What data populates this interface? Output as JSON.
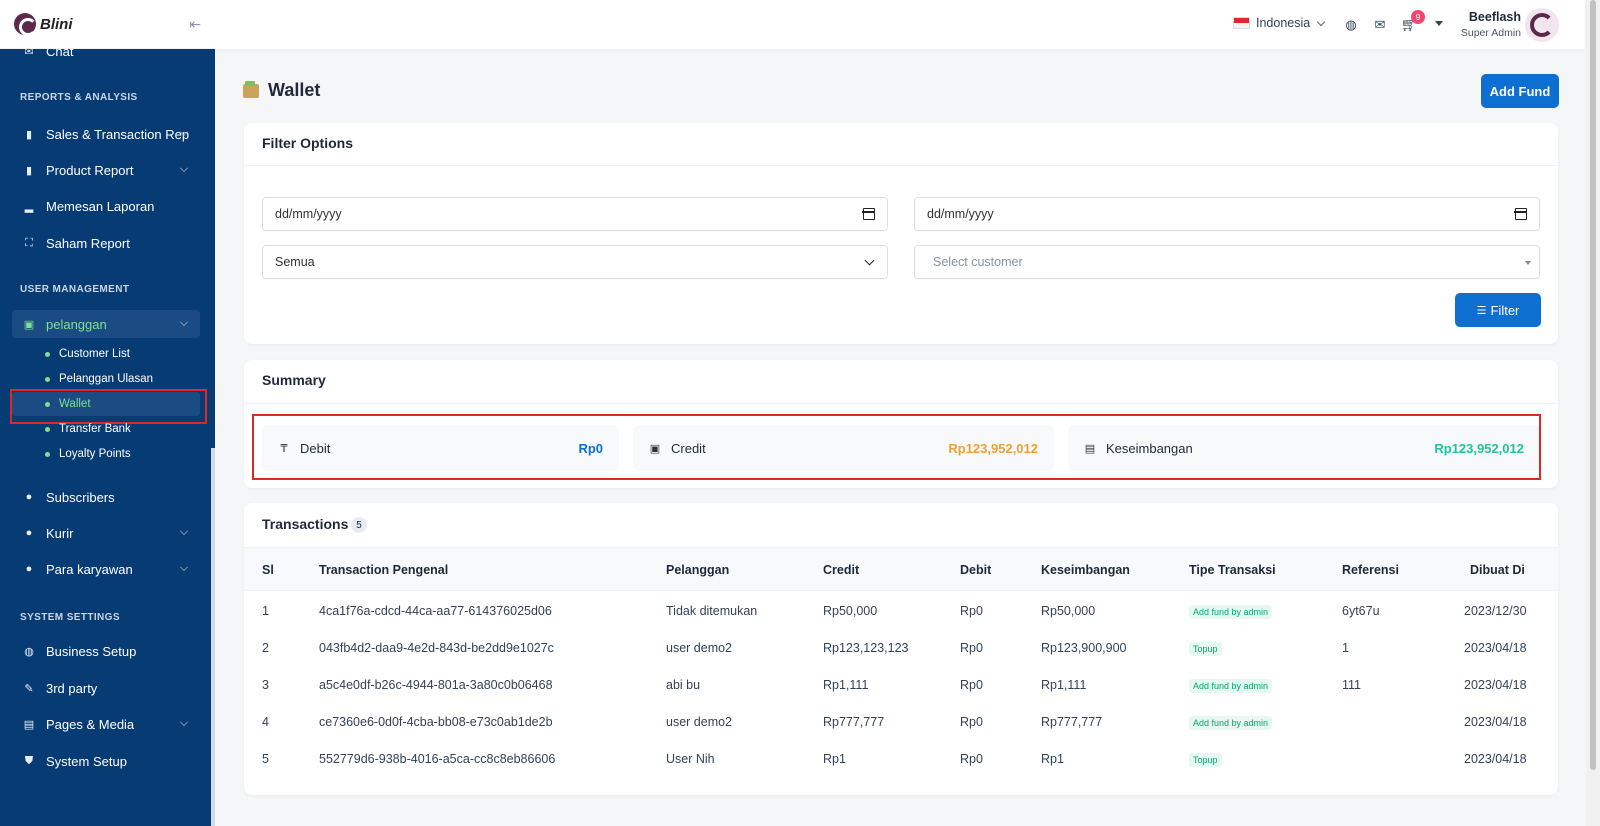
{
  "brand": {
    "name": "Blini"
  },
  "sidebar": {
    "top_item": "Chat",
    "section_reports": "REPORTS & ANALYSIS",
    "reports": [
      {
        "label": "Sales & Transaction Rep",
        "icon": "bar-chart-icon",
        "has_children": true
      },
      {
        "label": "Product Report",
        "icon": "bar-chart-icon",
        "has_children": true
      },
      {
        "label": "Memesan Laporan",
        "icon": "chart-icon",
        "has_children": false
      },
      {
        "label": "Saham Report",
        "icon": "expand-icon",
        "has_children": false
      }
    ],
    "section_users": "USER MANAGEMENT",
    "pelanggan": {
      "label": "pelanggan",
      "icon": "wallet-icon"
    },
    "pelanggan_children": [
      "Customer List",
      "Pelanggan Ulasan",
      "Wallet",
      "Transfer Bank",
      "Loyalty Points"
    ],
    "users": [
      {
        "label": "Subscribers",
        "icon": "user-icon",
        "has_children": false
      },
      {
        "label": "Kurir",
        "icon": "user-icon",
        "has_children": true
      },
      {
        "label": "Para karyawan",
        "icon": "user-icon",
        "has_children": true
      }
    ],
    "section_system": "SYSTEM SETTINGS",
    "system": [
      {
        "label": "Business Setup",
        "icon": "globe-icon",
        "has_children": false
      },
      {
        "label": "3rd party",
        "icon": "wrench-icon",
        "has_children": false
      },
      {
        "label": "Pages & Media",
        "icon": "pages-icon",
        "has_children": true
      },
      {
        "label": "System Setup",
        "icon": "shield-icon",
        "has_children": false
      }
    ]
  },
  "topbar": {
    "language": "Indonesia",
    "cart_count": "9",
    "user_name": "Beeflash",
    "user_role": "Super Admin"
  },
  "page": {
    "title": "Wallet",
    "add_fund_label": "Add Fund"
  },
  "filter": {
    "title": "Filter Options",
    "date_from": "dd/mm/yyyy",
    "date_to": "dd/mm/yyyy",
    "type_value": "Semua",
    "customer_placeholder": "Select customer",
    "button_label": "Filter"
  },
  "summary": {
    "title": "Summary",
    "debit_label": "Debit",
    "debit_value": "Rp0",
    "credit_label": "Credit",
    "credit_value": "Rp123,952,012",
    "balance_label": "Keseimbangan",
    "balance_value": "Rp123,952,012",
    "colors": {
      "debit": "#0d6fd0",
      "credit": "#f0a030",
      "balance": "#1ec39a"
    }
  },
  "transactions": {
    "title": "Transactions",
    "count": "5",
    "headers": [
      "Sl",
      "Transaction Pengenal",
      "Pelanggan",
      "Credit",
      "Debit",
      "Keseimbangan",
      "Tipe Transaksi",
      "Referensi",
      "Dibuat Di"
    ],
    "rows": [
      {
        "sl": "1",
        "id": "4ca1f76a-cdcd-44ca-aa77-614376025d06",
        "customer": "Tidak ditemukan",
        "credit": "Rp50,000",
        "debit": "Rp0",
        "balance": "Rp50,000",
        "type": "Add fund by admin",
        "ref": "6yt67u",
        "date": "2023/12/30"
      },
      {
        "sl": "2",
        "id": "043fb4d2-daa9-4e2d-843d-be2dd9e1027c",
        "customer": "user demo2",
        "credit": "Rp123,123,123",
        "debit": "Rp0",
        "balance": "Rp123,900,900",
        "type": "Topup",
        "ref": "1",
        "date": "2023/04/18"
      },
      {
        "sl": "3",
        "id": "a5c4e0df-b26c-4944-801a-3a80c0b06468",
        "customer": "abi bu",
        "credit": "Rp1,111",
        "debit": "Rp0",
        "balance": "Rp1,111",
        "type": "Add fund by admin",
        "ref": "111",
        "date": "2023/04/18"
      },
      {
        "sl": "4",
        "id": "ce7360e6-0d0f-4cba-bb08-e73c0ab1de2b",
        "customer": "user demo2",
        "credit": "Rp777,777",
        "debit": "Rp0",
        "balance": "Rp777,777",
        "type": "Add fund by admin",
        "ref": "",
        "date": "2023/04/18"
      },
      {
        "sl": "5",
        "id": "552779d6-938b-4016-a5ca-cc8c8eb86606",
        "customer": "User Nih",
        "credit": "Rp1",
        "debit": "Rp0",
        "balance": "Rp1",
        "type": "Topup",
        "ref": "",
        "date": "2023/04/18"
      }
    ]
  }
}
